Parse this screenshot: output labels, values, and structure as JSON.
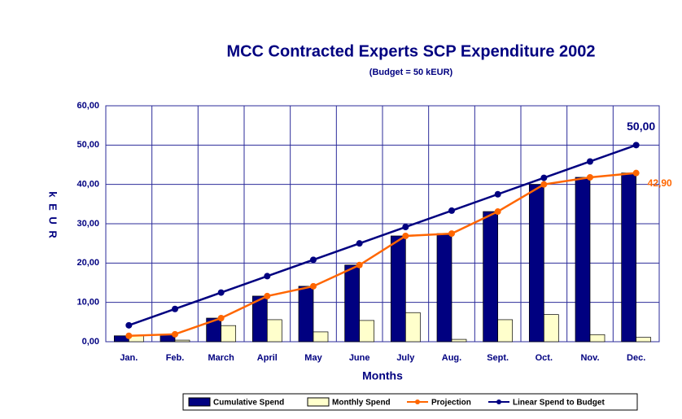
{
  "chart_data": {
    "type": "bar_line",
    "title": "MCC Contracted Experts SCP Expenditure 2002",
    "subtitle": "(Budget = 50 kEUR)",
    "x_label": "Months",
    "y_label": "k E U R",
    "categories": [
      "Jan.",
      "Feb.",
      "March",
      "April",
      "May",
      "June",
      "July",
      "Aug.",
      "Sept.",
      "Oct.",
      "Nov.",
      "Dec."
    ],
    "series": [
      {
        "name": "Cumulative Spend",
        "kind": "bar",
        "color": "#000080",
        "values": [
          1.5,
          1.9,
          6.0,
          11.6,
          14.1,
          19.5,
          26.9,
          27.5,
          33.1,
          40.0,
          41.8,
          42.9
        ]
      },
      {
        "name": "Monthly Spend",
        "kind": "bar",
        "color": "#ffffcc",
        "values": [
          1.5,
          0.4,
          4.1,
          5.6,
          2.5,
          5.4,
          7.4,
          0.6,
          5.6,
          6.9,
          1.8,
          1.1
        ]
      },
      {
        "name": "Projection",
        "kind": "line",
        "color": "#ff6600",
        "values": [
          1.5,
          1.9,
          6.0,
          11.6,
          14.1,
          19.5,
          26.9,
          27.5,
          33.1,
          40.0,
          41.8,
          42.9
        ]
      },
      {
        "name": "Linear Spend to Budget",
        "kind": "line",
        "color": "#000080",
        "values": [
          4.17,
          8.33,
          12.5,
          16.67,
          20.83,
          25,
          29.17,
          33.33,
          37.5,
          41.67,
          45.83,
          50
        ]
      }
    ],
    "annotations": [
      {
        "text": "50,00",
        "series": 3,
        "color": "#000080"
      },
      {
        "text": "42,90",
        "series": 2,
        "color": "#ff6600"
      }
    ],
    "ylim": [
      0,
      60
    ],
    "yticks": [
      {
        "value": 0,
        "label": "0,00"
      },
      {
        "value": 10,
        "label": "10,00"
      },
      {
        "value": 20,
        "label": "20,00"
      },
      {
        "value": 30,
        "label": "30,00"
      },
      {
        "value": 40,
        "label": "40,00"
      },
      {
        "value": 50,
        "label": "50,00"
      },
      {
        "value": 60,
        "label": "60,00"
      }
    ],
    "grid": true,
    "legend": "bottom"
  }
}
